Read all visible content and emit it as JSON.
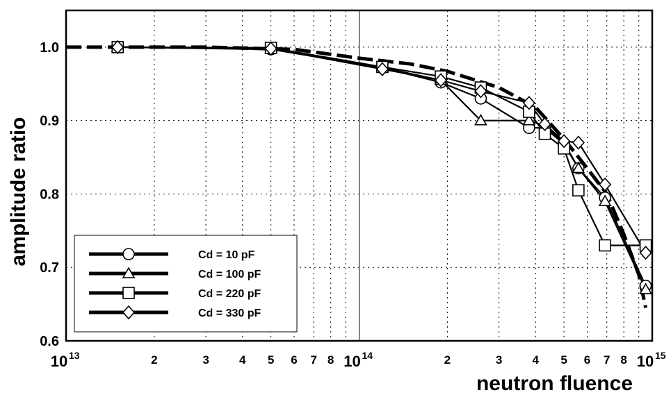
{
  "chart_data": {
    "type": "line",
    "xscale": "log",
    "xlim": [
      10000000000000.0,
      1000000000000000.0
    ],
    "ylim": [
      0.6,
      1.05
    ],
    "xlabel": "neutron fluence",
    "ylabel": "amplitude ratio",
    "yticks": [
      "0.6",
      "0.7",
      "0.8",
      "0.9",
      "1.0"
    ],
    "xticks_major": [
      {
        "base": "10",
        "exp": "13"
      },
      {
        "base": "10",
        "exp": "14"
      },
      {
        "base": "10",
        "exp": "15"
      }
    ],
    "xticks_minor_labels": [
      "2",
      "3",
      "4",
      "5",
      "6",
      "7",
      "8"
    ],
    "grid": true,
    "legend_position": "bottom-left",
    "series": [
      {
        "name": "Cd = 10 pF",
        "marker": "circle",
        "x": [
          15000000000000.0,
          50000000000000.0,
          120000000000000.0,
          190000000000000.0,
          260000000000000.0,
          380000000000000.0,
          430000000000000.0,
          500000000000000.0,
          560000000000000.0,
          690000000000000.0,
          950000000000000.0
        ],
        "y": [
          1.0,
          0.997,
          0.972,
          0.952,
          0.93,
          0.89,
          0.89,
          0.868,
          0.835,
          0.795,
          0.675
        ]
      },
      {
        "name": "Cd = 100 pF",
        "marker": "triangle",
        "x": [
          15000000000000.0,
          50000000000000.0,
          120000000000000.0,
          190000000000000.0,
          260000000000000.0,
          380000000000000.0,
          430000000000000.0,
          500000000000000.0,
          560000000000000.0,
          690000000000000.0,
          950000000000000.0
        ],
        "y": [
          1.0,
          0.998,
          0.972,
          0.955,
          0.9,
          0.9,
          0.893,
          0.87,
          0.835,
          0.79,
          0.67
        ]
      },
      {
        "name": "Cd = 220 pF",
        "marker": "square",
        "x": [
          15000000000000.0,
          50000000000000.0,
          120000000000000.0,
          190000000000000.0,
          260000000000000.0,
          380000000000000.0,
          430000000000000.0,
          500000000000000.0,
          560000000000000.0,
          690000000000000.0,
          950000000000000.0
        ],
        "y": [
          1.0,
          0.999,
          0.973,
          0.96,
          0.945,
          0.912,
          0.882,
          0.862,
          0.805,
          0.73,
          0.73
        ]
      },
      {
        "name": "Cd = 330 pF",
        "marker": "diamond",
        "x": [
          15000000000000.0,
          50000000000000.0,
          120000000000000.0,
          190000000000000.0,
          260000000000000.0,
          380000000000000.0,
          430000000000000.0,
          500000000000000.0,
          560000000000000.0,
          690000000000000.0,
          950000000000000.0
        ],
        "y": [
          1.0,
          0.998,
          0.97,
          0.955,
          0.94,
          0.924,
          0.895,
          0.872,
          0.87,
          0.813,
          0.72
        ]
      },
      {
        "marker": "none",
        "style": "dashed-fit",
        "x": [
          10000000000000.0,
          30000000000000.0,
          60000000000000.0,
          100000000000000.0,
          150000000000000.0,
          200000000000000.0,
          300000000000000.0,
          400000000000000.0,
          500000000000000.0,
          600000000000000.0,
          700000000000000.0,
          800000000000000.0,
          900000000000000.0,
          950000000000000.0
        ],
        "y": [
          1.0,
          1.0,
          0.997,
          0.985,
          0.977,
          0.967,
          0.945,
          0.918,
          0.875,
          0.835,
          0.8,
          0.745,
          0.69,
          0.645
        ]
      }
    ]
  }
}
